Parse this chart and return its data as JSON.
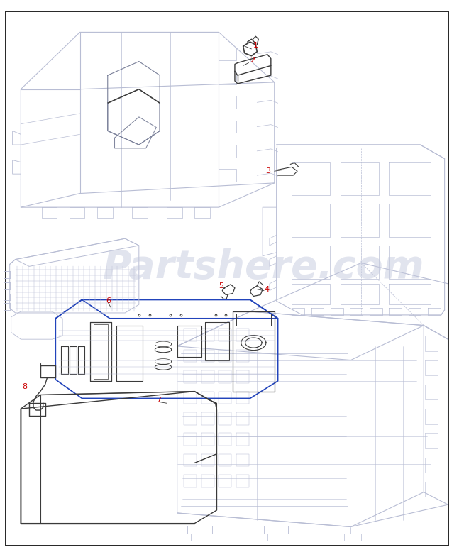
{
  "background_color": "#ffffff",
  "border_color": "#000000",
  "line_color": "#b8bdd4",
  "dark_line_color": "#7a8099",
  "black_line_color": "#3a3a3a",
  "callout_color": "#cc0000",
  "blue_box_color": "#2244bb",
  "watermark_color": "#c5cade",
  "watermark_text": "Partshere.com",
  "watermark_alpha": 0.5,
  "figsize": [
    6.54,
    7.85
  ],
  "dpi": 100
}
